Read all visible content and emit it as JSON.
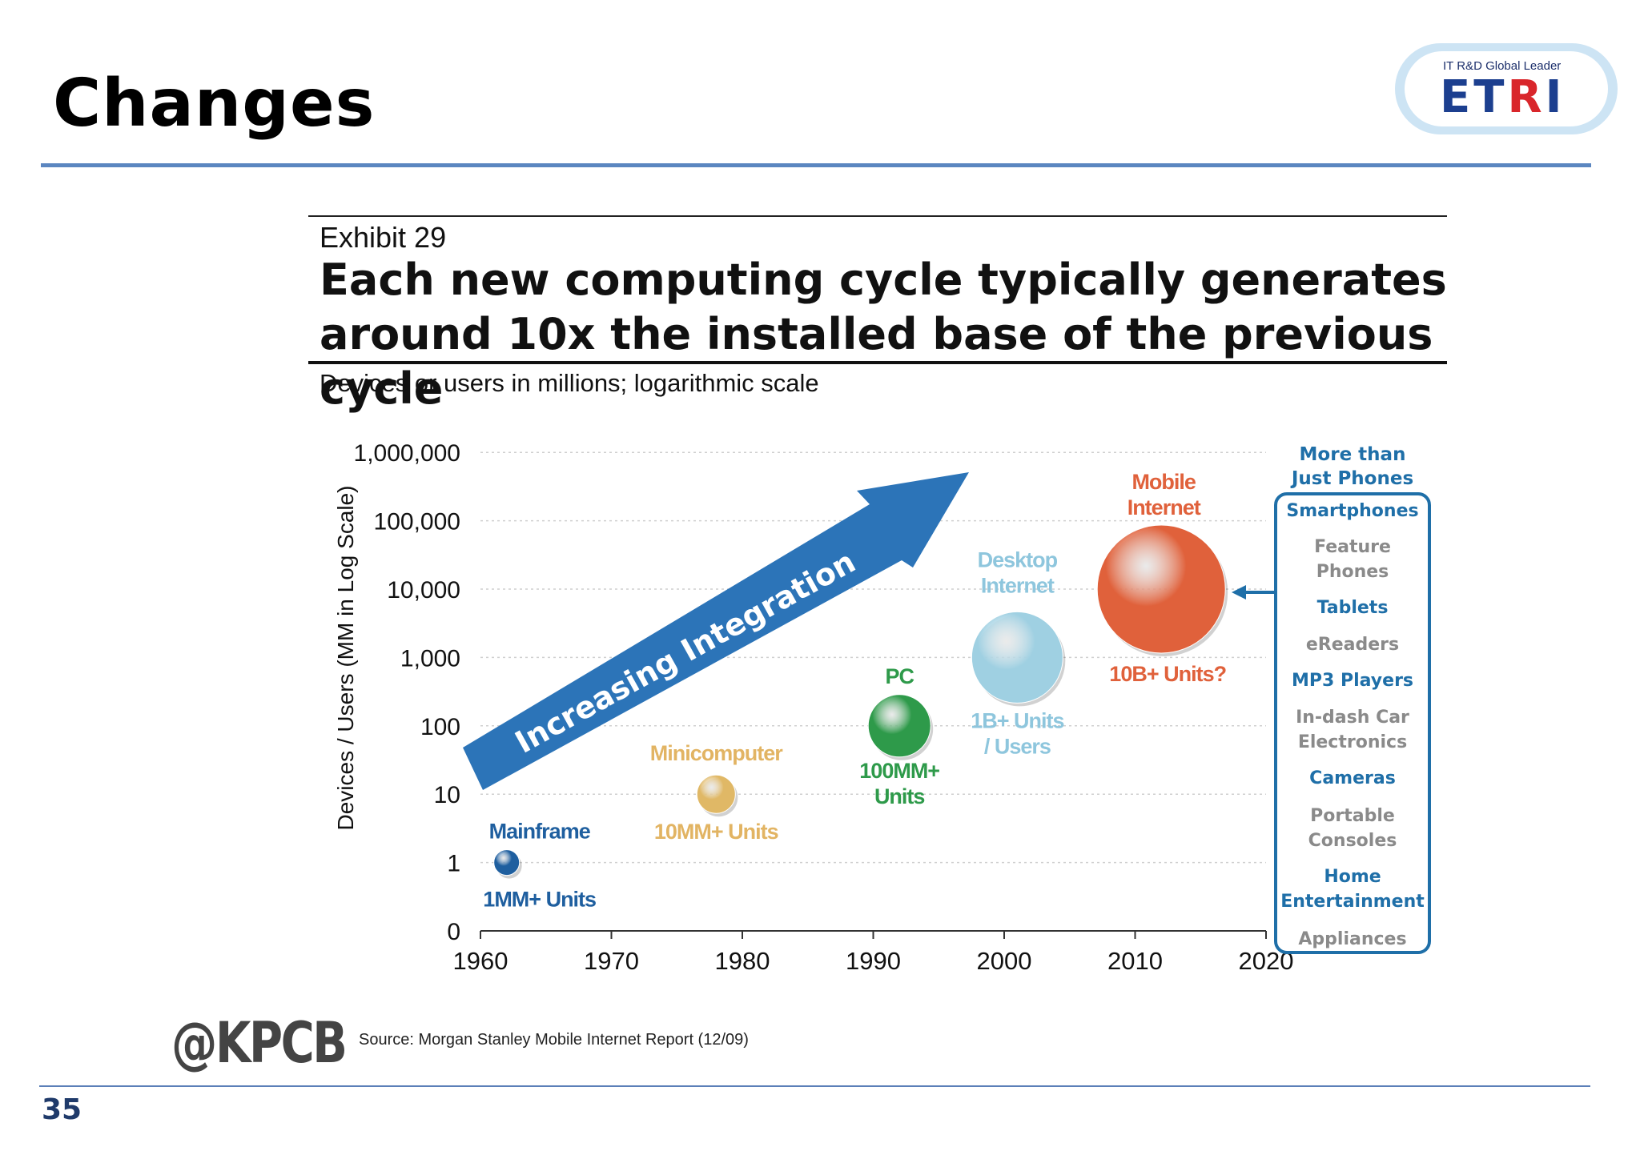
{
  "slide": {
    "title": "Changes",
    "page_number": "35",
    "logo": {
      "tagline": "IT R&D Global Leader",
      "text_blue_1": "ET",
      "text_red": "R",
      "text_blue_2": "I"
    }
  },
  "exhibit": {
    "label": "Exhibit 29",
    "headline": "Each new computing cycle typically generates around 10x the installed base of the previous cycle",
    "subtitle": "Devices or users in millions; logarithmic scale"
  },
  "chart_data": {
    "type": "scatter",
    "ylabel": "Devices / Users (MM in Log Scale)",
    "xlabel": "",
    "y_scale": "log",
    "x_range": [
      1960,
      2020
    ],
    "x_ticks": [
      "1960",
      "1970",
      "1980",
      "1990",
      "2000",
      "2010",
      "2020"
    ],
    "y_ticks": [
      "0",
      "1",
      "10",
      "100",
      "1,000",
      "10,000",
      "100,000",
      "1,000,000"
    ],
    "arrow_label": "Increasing Integration",
    "series": [
      {
        "name": "Mainframe",
        "x": 1962,
        "y": 1,
        "units_label": "1MM+ Units",
        "color": "#1f5f9f"
      },
      {
        "name": "Minicomputer",
        "x": 1978,
        "y": 10,
        "units_label": "10MM+ Units",
        "color": "#e0b866"
      },
      {
        "name": "PC",
        "x": 1992,
        "y": 100,
        "units_label": "100MM+ Units",
        "color": "#2e9a4a"
      },
      {
        "name": "Desktop Internet",
        "x": 2001,
        "y": 1000,
        "units_label": "1B+ Units / Users",
        "color": "#9fd0e2"
      },
      {
        "name": "Mobile Internet",
        "x": 2012,
        "y": 10000,
        "units_label": "10B+ Units?",
        "color": "#e0613b"
      }
    ],
    "side_list": {
      "heading": "More than Just Phones",
      "items": [
        {
          "label": "Smartphones",
          "highlight": true
        },
        {
          "label": "Feature Phones",
          "highlight": false
        },
        {
          "label": "Tablets",
          "highlight": true
        },
        {
          "label": "eReaders",
          "highlight": false
        },
        {
          "label": "MP3 Players",
          "highlight": true
        },
        {
          "label": "In-dash Car Electronics",
          "highlight": false
        },
        {
          "label": "Cameras",
          "highlight": true
        },
        {
          "label": "Portable Consoles",
          "highlight": false
        },
        {
          "label": "Home Entertainment",
          "highlight": true
        },
        {
          "label": "Appliances",
          "highlight": false
        }
      ]
    }
  },
  "footer": {
    "brand": "@KPCB",
    "source": "Source: Morgan Stanley Mobile Internet Report (12/09)"
  }
}
